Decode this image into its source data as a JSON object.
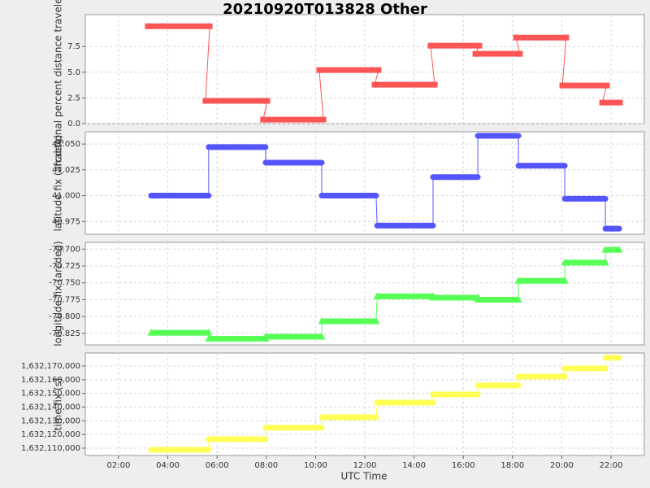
{
  "chart_data": [
    {
      "type": "line",
      "title": "20210920T013828 Other",
      "ylabel": "fractional percent distance traveled (%)",
      "color": "#ff5555",
      "marker": "square",
      "grid": true,
      "x": [
        3.19,
        5.7,
        5.53,
        8.04,
        7.87,
        10.32,
        10.15,
        12.56,
        12.4,
        14.84,
        14.67,
        16.65,
        16.49,
        18.3,
        18.14,
        20.18,
        20.02,
        21.83,
        21.64,
        22.36
      ],
      "values": [
        9.47,
        9.47,
        2.21,
        2.21,
        0.39,
        0.39,
        5.21,
        5.21,
        3.79,
        3.79,
        7.58,
        7.58,
        6.79,
        6.79,
        8.37,
        8.37,
        3.71,
        3.71,
        2.05,
        2.05
      ],
      "ylim": [
        0,
        10.6
      ],
      "yticks": [
        {
          "value": 0,
          "label": "0.0"
        },
        2.5,
        {
          "value": 5,
          "label": "5.0"
        },
        7.5
      ]
    },
    {
      "type": "line",
      "ylabel": "latitude fix (arcdeg)",
      "color": "#5555ff",
      "marker": "circle",
      "grid": true,
      "x": [
        3.32,
        5.66,
        5.66,
        7.97,
        7.97,
        10.25,
        10.25,
        12.46,
        12.5,
        14.77,
        14.77,
        16.59,
        16.59,
        18.24,
        18.24,
        20.12,
        20.12,
        21.77,
        21.77,
        22.33
      ],
      "values": [
        41.0,
        41.0,
        41.047,
        41.047,
        41.032,
        41.032,
        41.0,
        41.0,
        40.971,
        40.971,
        41.018,
        41.018,
        41.058,
        41.058,
        41.029,
        41.029,
        40.997,
        40.997,
        40.968,
        40.968
      ],
      "ylim": [
        40.9626,
        41.0619
      ],
      "yticks": [
        40.975,
        {
          "value": 41,
          "label": "41.000"
        },
        41.025,
        {
          "value": 41.05,
          "label": "41.050"
        }
      ]
    },
    {
      "type": "line",
      "ylabel": "longitude fix (arcdeg)",
      "color": "#55ff55",
      "marker": "triangle",
      "grid": true,
      "x": [
        3.32,
        5.66,
        5.66,
        7.97,
        7.97,
        10.25,
        10.25,
        12.46,
        12.5,
        14.77,
        14.77,
        16.59,
        16.59,
        18.24,
        18.24,
        20.12,
        20.12,
        21.77,
        21.77,
        22.33
      ],
      "values": [
        -70.824,
        -70.824,
        -70.833,
        -70.833,
        -70.83,
        -70.83,
        -70.807,
        -70.807,
        -70.77,
        -70.77,
        -70.772,
        -70.772,
        -70.775,
        -70.775,
        -70.747,
        -70.747,
        -70.72,
        -70.72,
        -70.701,
        -70.701
      ],
      "ylim": [
        -70.842,
        -70.69
      ],
      "yticks": [
        -70.825,
        {
          "value": -70.8,
          "label": "-70.800"
        },
        -70.775,
        {
          "value": -70.75,
          "label": "-70.750"
        },
        -70.725,
        {
          "value": -70.7,
          "label": "-70.700"
        }
      ]
    },
    {
      "type": "line",
      "ylabel": "time fix (s)",
      "xlabel": "UTC Time",
      "color": "#ffff55",
      "marker": "circle",
      "grid": true,
      "x": [
        3.32,
        5.66,
        5.66,
        7.97,
        7.97,
        10.25,
        10.25,
        12.46,
        12.5,
        14.77,
        14.77,
        16.59,
        16.59,
        18.24,
        18.24,
        20.12,
        20.12,
        21.77,
        21.77,
        22.33
      ],
      "values": [
        1632108800,
        1632108800,
        1632116500,
        1632116500,
        1632124900,
        1632124900,
        1632132600,
        1632132600,
        1632143300,
        1632143300,
        1632149200,
        1632149200,
        1632155800,
        1632155800,
        1632162300,
        1632162300,
        1632168200,
        1632168200,
        1632176000,
        1632176000
      ],
      "ylim": [
        1632104650,
        1632179500
      ],
      "yticks": [
        {
          "value": 1632110000,
          "label": "1,632,110,000"
        },
        {
          "value": 1632120000,
          "label": "1,632,120,000"
        },
        {
          "value": 1632130000,
          "label": "1,632,130,000"
        },
        {
          "value": 1632140000,
          "label": "1,632,140,000"
        },
        {
          "value": 1632150000,
          "label": "1,632,150,000"
        },
        {
          "value": 1632160000,
          "label": "1,632,160,000"
        },
        {
          "value": 1632170000,
          "label": "1,632,170,000"
        }
      ],
      "xlim": [
        0.65,
        23.35
      ],
      "xticks": [
        {
          "value": 2,
          "label": "02:00"
        },
        {
          "value": 4,
          "label": "04:00"
        },
        {
          "value": 6,
          "label": "06:00"
        },
        {
          "value": 8,
          "label": "08:00"
        },
        {
          "value": 10,
          "label": "10:00"
        },
        {
          "value": 12,
          "label": "12:00"
        },
        {
          "value": 14,
          "label": "14:00"
        },
        {
          "value": 16,
          "label": "16:00"
        },
        {
          "value": 18,
          "label": "18:00"
        },
        {
          "value": 20,
          "label": "20:00"
        },
        {
          "value": 22,
          "label": "22:00"
        }
      ]
    }
  ]
}
